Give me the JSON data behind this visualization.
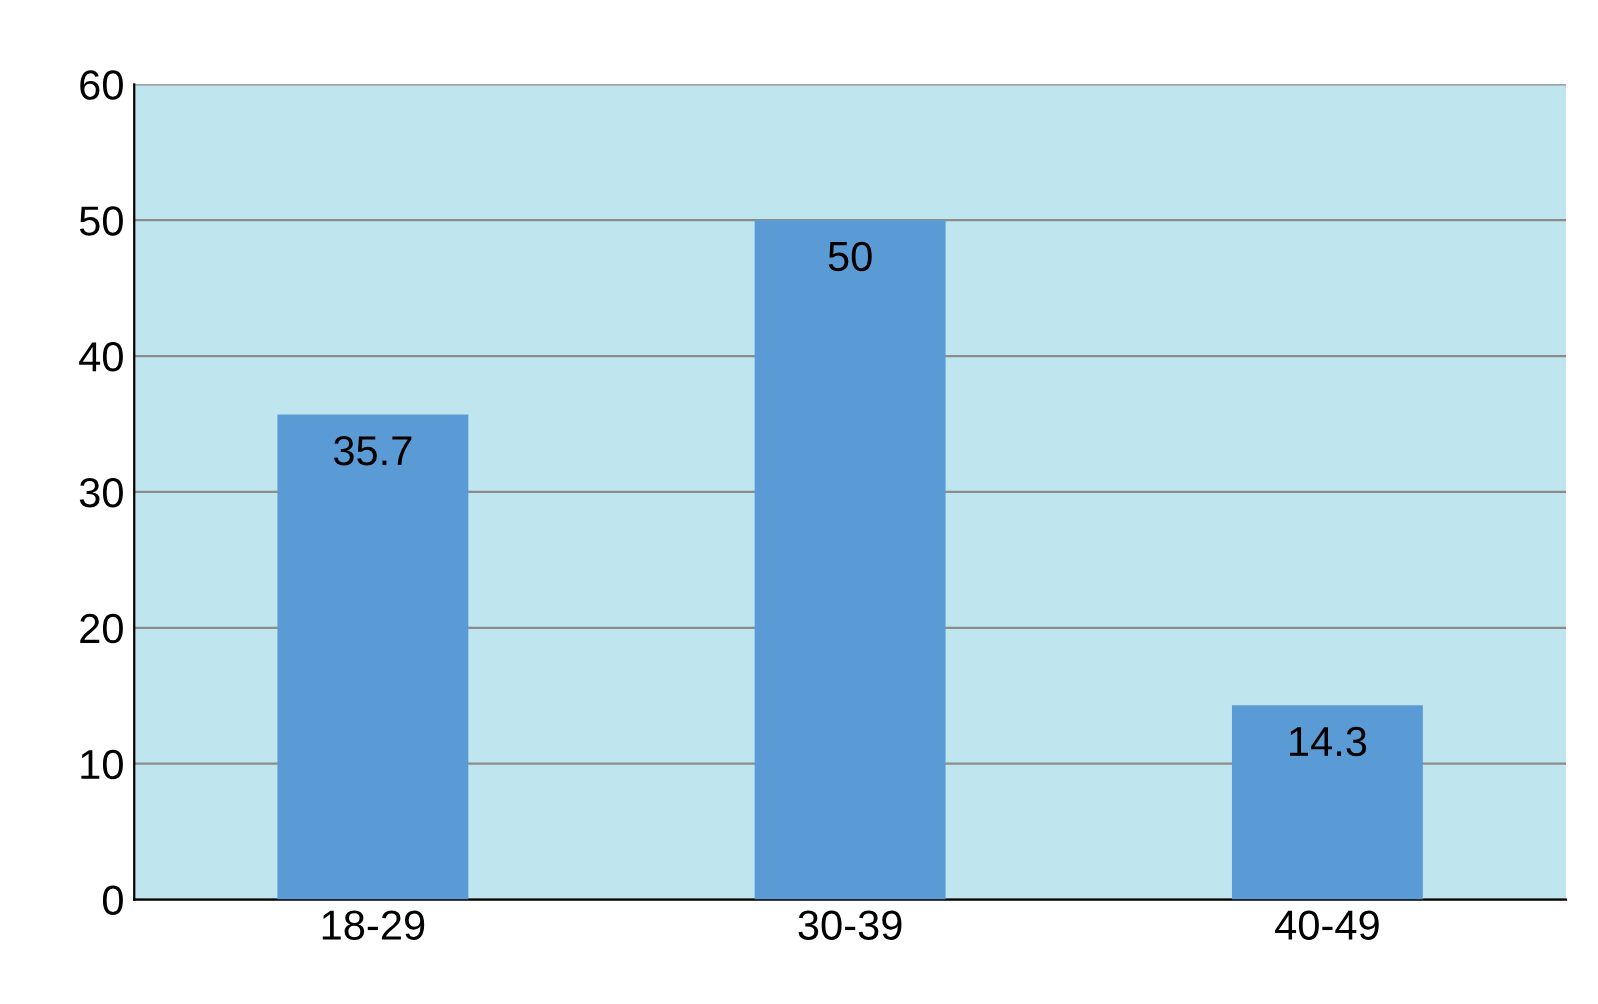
{
  "chart_data": {
    "type": "bar",
    "categories": [
      "18-29",
      "30-39",
      "40-49"
    ],
    "values": [
      35.7,
      50,
      14.3
    ],
    "color": "#5b9bd5",
    "ylim": [
      0,
      60
    ],
    "yticks": [
      0,
      10,
      20,
      30,
      40,
      50,
      60
    ],
    "grid": "y",
    "data_labels": true
  }
}
